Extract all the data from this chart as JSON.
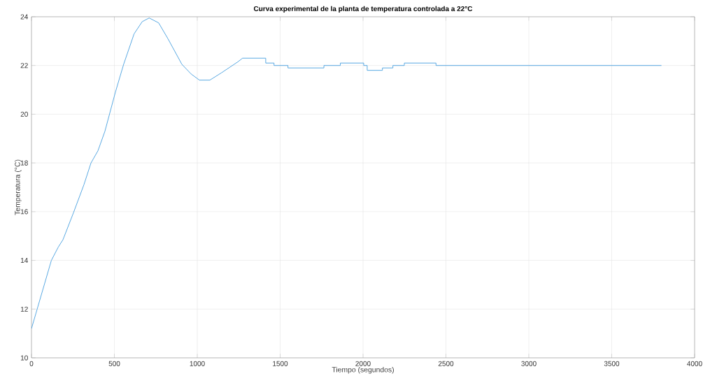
{
  "chart_data": {
    "type": "line",
    "title": "Curva experimental de la planta de temperatura controlada a 22°C",
    "xlabel": "Tiempo (segundos)",
    "ylabel": "Temperatura (°C)",
    "xlim": [
      0,
      4000
    ],
    "xticks": [
      0,
      500,
      1000,
      1500,
      2000,
      2500,
      3000,
      3500,
      4000
    ],
    "ylim": [
      10,
      24
    ],
    "yticks": [
      10,
      12,
      14,
      16,
      18,
      20,
      22,
      24
    ],
    "grid": true,
    "series": [
      {
        "color": "#4da3e0",
        "x": [
          0,
          120,
          162,
          190,
          253,
          316,
          359,
          401,
          443,
          506,
          556,
          619,
          668,
          710,
          767,
          823,
          907,
          963,
          1013,
          1076,
          1146,
          1245,
          1273,
          1413,
          1413,
          1463,
          1463,
          1547,
          1547,
          1764,
          1764,
          1863,
          1863,
          2004,
          2004,
          2025,
          2025,
          2117,
          2117,
          2180,
          2180,
          2249,
          2249,
          2440,
          2440,
          3800
        ],
        "values": [
          11.2,
          14.0,
          14.55,
          14.85,
          15.95,
          17.1,
          18.0,
          18.5,
          19.3,
          20.9,
          22.05,
          23.3,
          23.8,
          23.95,
          23.75,
          23.1,
          22.05,
          21.65,
          21.4,
          21.4,
          21.7,
          22.15,
          22.3,
          22.3,
          22.1,
          22.1,
          22.0,
          22.0,
          21.9,
          21.9,
          22.0,
          22.0,
          22.1,
          22.1,
          22.0,
          22.0,
          21.8,
          21.8,
          21.9,
          21.9,
          22.0,
          22.0,
          22.1,
          22.1,
          22.0,
          22.0
        ]
      }
    ]
  }
}
